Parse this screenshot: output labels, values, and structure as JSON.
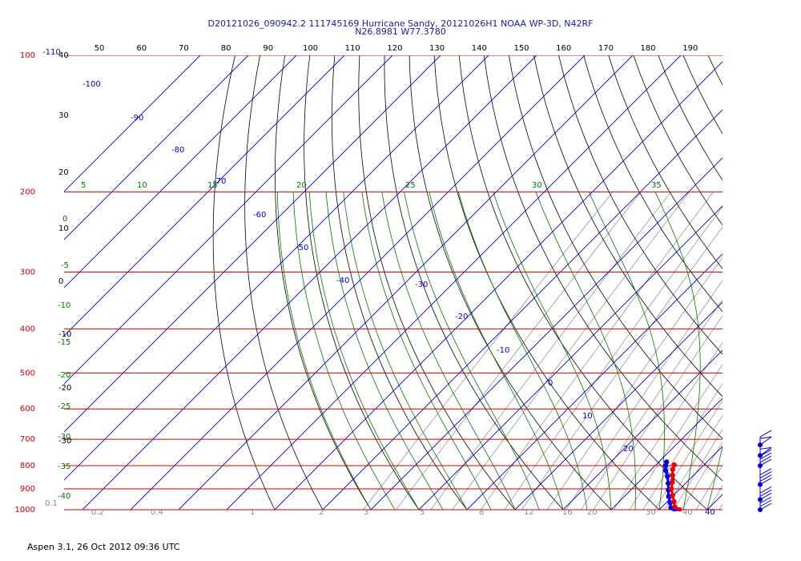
{
  "header": {
    "line1": "D20121026_090942.2 111745169 Hurricane Sandy, 20121026H1 NOAA WP-3D, N42RF",
    "line2": "N26.8981 W77.3780"
  },
  "footer": {
    "text": "Aspen 3.1, 26 Oct 2012  09:36 UTC"
  },
  "colors": {
    "isobar": "#cc0000",
    "isotherm": "#0000cc",
    "theta": "#000000",
    "mixing_ratio": "#888888",
    "moist_adiabat": "#007700",
    "temperature_trace": "#ee0000",
    "dewpoint_trace": "#0000ee",
    "wind_barb": "#0000cc"
  },
  "chart_data": {
    "type": "skew-t",
    "pressure_levels": [
      {
        "label": "100",
        "p": 100
      },
      {
        "label": "200",
        "p": 200
      },
      {
        "label": "300",
        "p": 300
      },
      {
        "label": "400",
        "p": 400
      },
      {
        "label": "500",
        "p": 500
      },
      {
        "label": "600",
        "p": 600
      },
      {
        "label": "700",
        "p": 700
      },
      {
        "label": "800",
        "p": 800
      },
      {
        "label": "900",
        "p": 900
      },
      {
        "label": "1000",
        "p": 1000
      }
    ],
    "top_scale_labels": [
      "50",
      "60",
      "70",
      "80",
      "90",
      "100",
      "110",
      "120",
      "130",
      "140",
      "150",
      "160",
      "170",
      "180",
      "190"
    ],
    "isotherm_labels": [
      "-110",
      "-100",
      "-90",
      "-80",
      "-70",
      "-60",
      "-50",
      "-40",
      "-30",
      "-20",
      "-10",
      "0",
      "10",
      "20",
      "30",
      "40"
    ],
    "left_scale_labels": [
      "40",
      "30",
      "20",
      "10",
      "0",
      "-10",
      "-20",
      "-30"
    ],
    "moist_labels": [
      "5",
      "10",
      "15",
      "20",
      "25",
      "30",
      "35"
    ],
    "moist_left_labels": [
      "0",
      "-5",
      "-10",
      "-15",
      "-20",
      "-25",
      "-30",
      "-35",
      "-40"
    ],
    "mixing_ratio_labels": [
      "0.1",
      "0.2",
      "0.4",
      "1",
      "2",
      "3",
      "5",
      "8",
      "12",
      "16",
      "20",
      "30",
      "40"
    ],
    "temperature_profile": [
      {
        "p": 1000,
        "t": 24.2
      },
      {
        "p": 985,
        "t": 22.6
      },
      {
        "p": 960,
        "t": 21.4
      },
      {
        "p": 930,
        "t": 19.8
      },
      {
        "p": 900,
        "t": 18.2
      },
      {
        "p": 870,
        "t": 17.0
      },
      {
        "p": 840,
        "t": 15.6
      },
      {
        "p": 815,
        "t": 14.4
      },
      {
        "p": 797,
        "t": 13.8
      }
    ],
    "dewpoint_profile": [
      {
        "p": 1000,
        "t": 23.2
      },
      {
        "p": 990,
        "t": 22.0
      },
      {
        "p": 965,
        "t": 20.8
      },
      {
        "p": 935,
        "t": 19.2
      },
      {
        "p": 905,
        "t": 17.8
      },
      {
        "p": 875,
        "t": 16.4
      },
      {
        "p": 845,
        "t": 14.8
      },
      {
        "p": 820,
        "t": 13.2
      },
      {
        "p": 800,
        "t": 12.2
      },
      {
        "p": 785,
        "t": 11.6
      }
    ],
    "wind_barbs": [
      {
        "p": 1000,
        "speed_kt": 25
      },
      {
        "p": 950,
        "speed_kt": 30
      },
      {
        "p": 880,
        "speed_kt": 35
      },
      {
        "p": 800,
        "speed_kt": 40
      },
      {
        "p": 760,
        "speed_kt": 50
      },
      {
        "p": 720,
        "speed_kt": 55
      }
    ]
  }
}
